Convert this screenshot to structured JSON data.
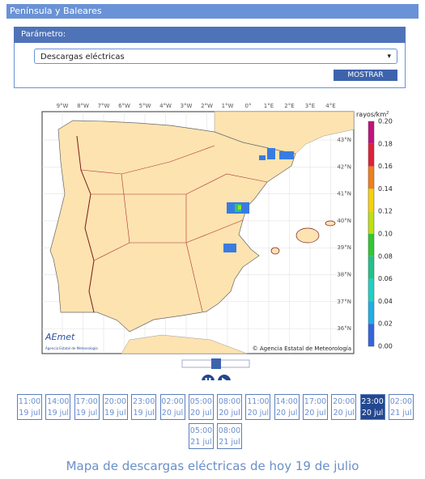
{
  "header": {
    "title": "Península y Baleares"
  },
  "form": {
    "label": "Parámetro:",
    "select": "Descargas eléctricas",
    "button": "MOSTRAR"
  },
  "map": {
    "lon_labels": [
      "9°W",
      "8°W",
      "7°W",
      "6°W",
      "5°W",
      "4°W",
      "3°W",
      "2°W",
      "1°W",
      "0°",
      "1°E",
      "2°E",
      "3°E",
      "4°E"
    ],
    "lat_labels": [
      "43°N",
      "42°N",
      "41°N",
      "40°N",
      "39°N",
      "38°N",
      "37°N",
      "36°N"
    ],
    "legend": {
      "title": "rayos/km",
      "title_sup": "2",
      "ticks": [
        "0.20",
        "0.18",
        "0.16",
        "0.14",
        "0.12",
        "0.10",
        "0.08",
        "0.06",
        "0.04",
        "0.02",
        "0.00"
      ]
    },
    "copyright": "© Agencia Estatal de Meteorología",
    "logo": {
      "name": "AEmet",
      "subtitle": "Agencia Estatal de Meteorología"
    }
  },
  "times": [
    {
      "time": "11:00",
      "date": "19 jul"
    },
    {
      "time": "14:00",
      "date": "19 jul"
    },
    {
      "time": "17:00",
      "date": "19 jul"
    },
    {
      "time": "20:00",
      "date": "19 jul"
    },
    {
      "time": "23:00",
      "date": "19 jul"
    },
    {
      "time": "02:00",
      "date": "20 jul"
    },
    {
      "time": "05:00",
      "date": "20 jul"
    },
    {
      "time": "08:00",
      "date": "20 jul"
    },
    {
      "time": "11:00",
      "date": "20 jul"
    },
    {
      "time": "14:00",
      "date": "20 jul"
    },
    {
      "time": "17:00",
      "date": "20 jul"
    },
    {
      "time": "20:00",
      "date": "20 jul"
    },
    {
      "time": "23:00",
      "date": "20 jul"
    },
    {
      "time": "02:00",
      "date": "21 jul"
    },
    {
      "time": "05:00",
      "date": "21 jul"
    },
    {
      "time": "08:00",
      "date": "21 jul"
    }
  ],
  "selected": 12,
  "caption": "Mapa de descargas eléctricas de hoy 19 de julio"
}
